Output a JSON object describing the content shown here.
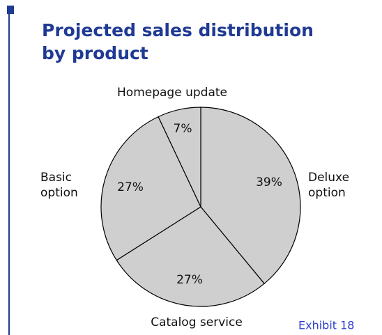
{
  "chart_data": {
    "type": "pie",
    "title": "Projected sales distribution by product",
    "categories": [
      "Deluxe option",
      "Catalog service",
      "Basic option",
      "Homepage update"
    ],
    "values": [
      39,
      27,
      27,
      7
    ],
    "value_labels": [
      "39%",
      "27%",
      "27%",
      "7%"
    ],
    "color": "#cfcfcf",
    "annotation": "Exhibit 18"
  }
}
